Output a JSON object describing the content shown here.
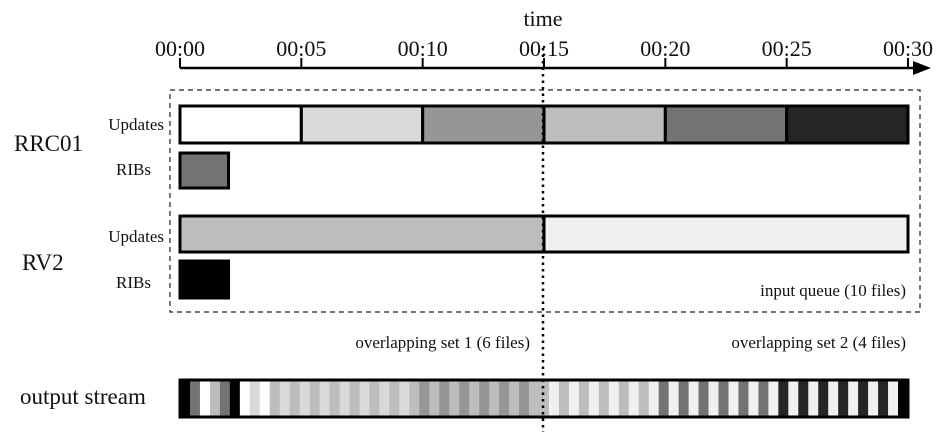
{
  "axis": {
    "title": "time",
    "ticks": [
      "00:00",
      "00:05",
      "00:10",
      "00:15",
      "00:20",
      "00:25",
      "00:30"
    ]
  },
  "sources": [
    {
      "name": "RRC01",
      "updates_label": "Updates",
      "ribs_label": "RIBs",
      "updates_segments": [
        {
          "start_min": 0,
          "end_min": 5,
          "color": "#ffffff"
        },
        {
          "start_min": 5,
          "end_min": 10,
          "color": "#d9d9d9"
        },
        {
          "start_min": 10,
          "end_min": 15,
          "color": "#969696"
        },
        {
          "start_min": 15,
          "end_min": 20,
          "color": "#bdbdbd"
        },
        {
          "start_min": 20,
          "end_min": 25,
          "color": "#737373"
        },
        {
          "start_min": 25,
          "end_min": 30,
          "color": "#252525"
        }
      ],
      "rib": {
        "start_min": 0,
        "end_min": 2,
        "color": "#737373"
      }
    },
    {
      "name": "RV2",
      "updates_label": "Updates",
      "ribs_label": "RIBs",
      "updates_segments": [
        {
          "start_min": 0,
          "end_min": 15,
          "color": "#bdbdbd"
        },
        {
          "start_min": 15,
          "end_min": 30,
          "color": "#f0f0f0"
        }
      ],
      "rib": {
        "start_min": 0,
        "end_min": 2,
        "color": "#000000"
      }
    }
  ],
  "input_queue_label": "input queue (10 files)",
  "overlap_labels": {
    "set1": "overlapping set 1 (6 files)",
    "set2": "overlapping set 2 (4 files)"
  },
  "output_stream": {
    "label": "output stream",
    "stripes": [
      "#000000",
      "#737373",
      "#ffffff",
      "#bdbdbd",
      "#737373",
      "#000000",
      "#ffffff",
      "#d9d9d9",
      "#ffffff",
      "#bdbdbd",
      "#d9d9d9",
      "#bdbdbd",
      "#d9d9d9",
      "#bdbdbd",
      "#d9d9d9",
      "#bdbdbd",
      "#d9d9d9",
      "#bdbdbd",
      "#d9d9d9",
      "#bdbdbd",
      "#d9d9d9",
      "#bdbdbd",
      "#d9d9d9",
      "#bdbdbd",
      "#969696",
      "#bdbdbd",
      "#969696",
      "#bdbdbd",
      "#969696",
      "#bdbdbd",
      "#969696",
      "#bdbdbd",
      "#969696",
      "#bdbdbd",
      "#969696",
      "#bdbdbd",
      "#bdbdbd",
      "#f0f0f0",
      "#bdbdbd",
      "#f0f0f0",
      "#bdbdbd",
      "#f0f0f0",
      "#bdbdbd",
      "#f0f0f0",
      "#bdbdbd",
      "#f0f0f0",
      "#bdbdbd",
      "#f0f0f0",
      "#737373",
      "#f0f0f0",
      "#737373",
      "#f0f0f0",
      "#737373",
      "#f0f0f0",
      "#737373",
      "#f0f0f0",
      "#737373",
      "#f0f0f0",
      "#737373",
      "#f0f0f0",
      "#252525",
      "#f0f0f0",
      "#252525",
      "#f0f0f0",
      "#252525",
      "#f0f0f0",
      "#252525",
      "#f0f0f0",
      "#252525",
      "#f0f0f0",
      "#252525",
      "#f0f0f0",
      "#000000"
    ]
  }
}
